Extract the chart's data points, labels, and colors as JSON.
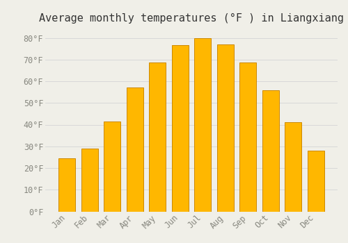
{
  "title": "Average monthly temperatures (°F ) in Liangxiang",
  "months": [
    "Jan",
    "Feb",
    "Mar",
    "Apr",
    "May",
    "Jun",
    "Jul",
    "Aug",
    "Sep",
    "Oct",
    "Nov",
    "Dec"
  ],
  "values": [
    24.5,
    29.0,
    41.5,
    57.0,
    68.5,
    76.5,
    80.0,
    77.0,
    68.5,
    56.0,
    41.0,
    28.0
  ],
  "bar_color_top": "#FFB700",
  "bar_color_bottom": "#FFA500",
  "bar_edge_color": "#CC8800",
  "background_color": "#F0EFE8",
  "grid_color": "#D8D8D8",
  "ylim": [
    0,
    84
  ],
  "yticks": [
    0,
    10,
    20,
    30,
    40,
    50,
    60,
    70,
    80
  ],
  "title_fontsize": 11,
  "tick_fontsize": 8.5,
  "tick_font_color": "#888880",
  "bar_width": 0.75
}
